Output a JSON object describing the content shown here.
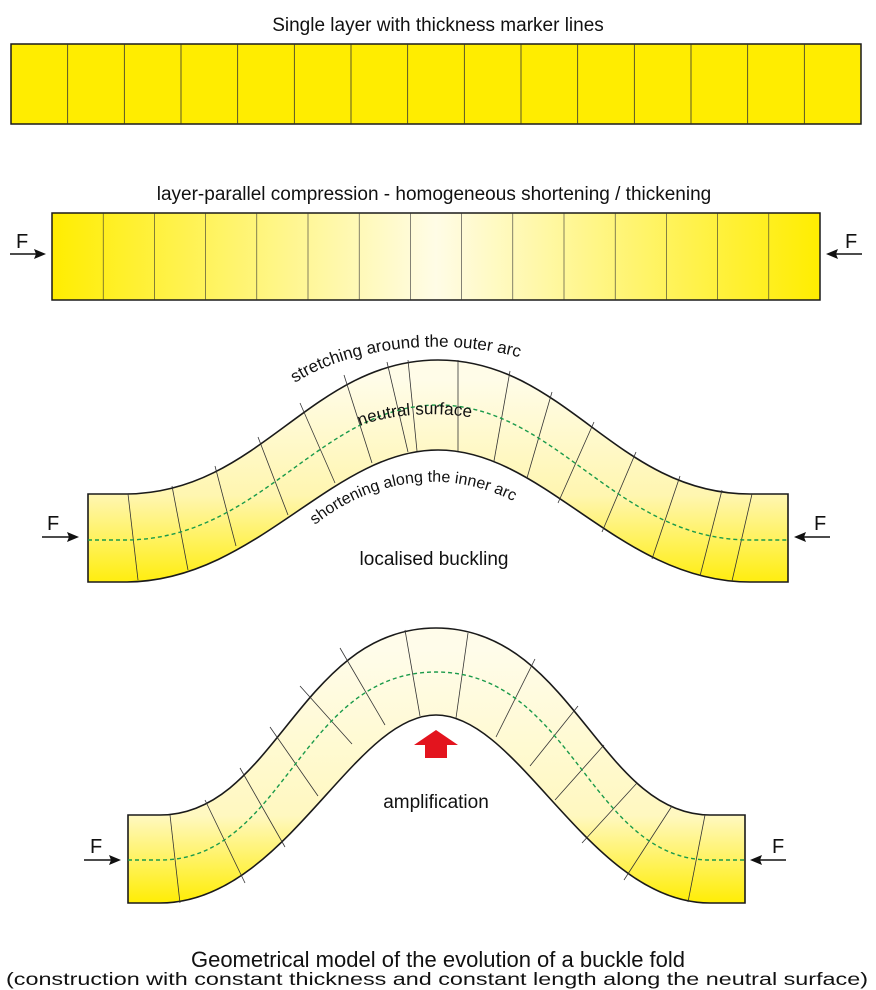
{
  "stage1": {
    "title": "Single layer with thickness marker lines"
  },
  "stage2": {
    "title": "layer-parallel compression - homogeneous shortening / thickening",
    "force_left": "F",
    "force_right": "F"
  },
  "stage3": {
    "outer_label": "stretching around the outer arc",
    "neutral_label": "neutral surface",
    "inner_label": "shortening along the inner arc",
    "title": "localised buckling",
    "force_left": "F",
    "force_right": "F"
  },
  "stage4": {
    "title": "amplification",
    "force_left": "F",
    "force_right": "F"
  },
  "caption": {
    "line1": "Geometrical model of the evolution of a buckle fold",
    "line2": "(construction with constant thickness and constant length along the neutral surface)"
  },
  "colors": {
    "layer_yellow": "#FFED00",
    "layer_pale": "#FFFCE6",
    "neutral_line": "#1A9A4A",
    "arrow_red": "#E3141E",
    "outline": "#1a1a1a"
  }
}
